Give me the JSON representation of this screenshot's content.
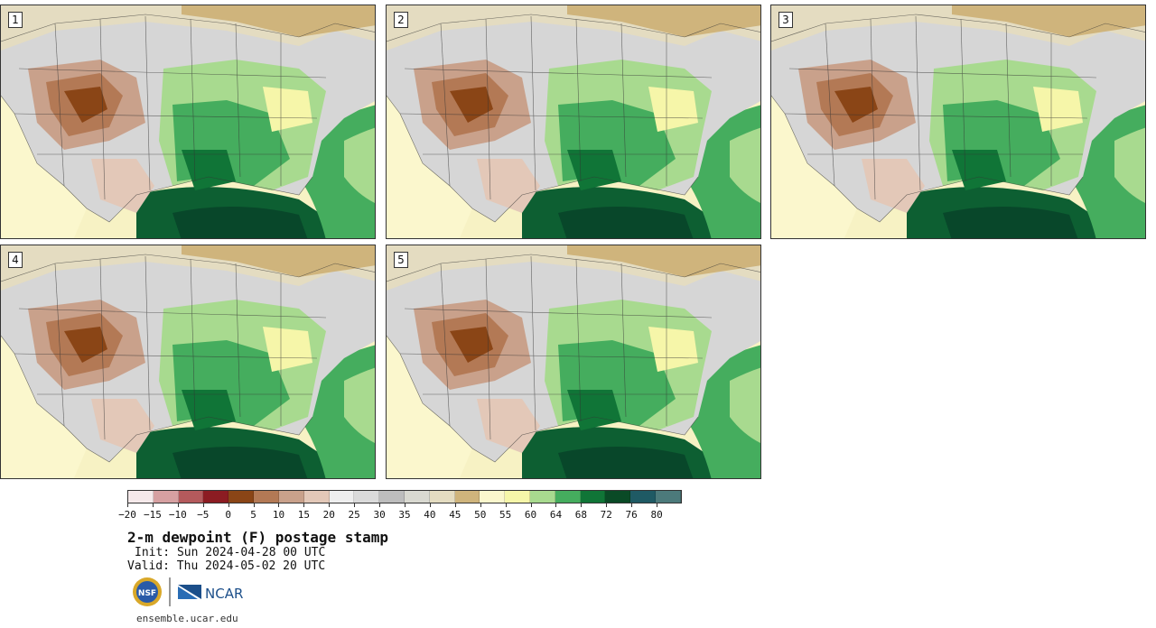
{
  "panels": [
    {
      "label": "1"
    },
    {
      "label": "2"
    },
    {
      "label": "3"
    },
    {
      "label": "4"
    },
    {
      "label": "5"
    }
  ],
  "colorbar": {
    "colors": [
      "#f5e9ea",
      "#d6a0a1",
      "#b45a5c",
      "#8c1c22",
      "#8a4516",
      "#b37955",
      "#c9a18b",
      "#e3c8b8",
      "#eeeeee",
      "#dadada",
      "#bdbdbd",
      "#d9d9d1",
      "#e4dcc1",
      "#cfb47c",
      "#fbf7cd",
      "#f6f6a9",
      "#a8da8f",
      "#45ad5e",
      "#107537",
      "#0a4a26",
      "#1f5a64",
      "#4c7a7b"
    ],
    "tick_labels": [
      "−20",
      "−15",
      "−10",
      "−5",
      "0",
      "5",
      "10",
      "15",
      "20",
      "25",
      "30",
      "35",
      "40",
      "45",
      "50",
      "55",
      "60",
      "64",
      "68",
      "72",
      "76",
      "80"
    ]
  },
  "title": "2-m dewpoint (F) postage stamp",
  "init": "Init: Sun 2024-04-28 00 UTC",
  "valid": "Valid: Thu 2024-05-02 20 UTC",
  "logos": {
    "nsf": "NSF",
    "ncar": "NCAR"
  },
  "website": "ensemble.ucar.edu"
}
